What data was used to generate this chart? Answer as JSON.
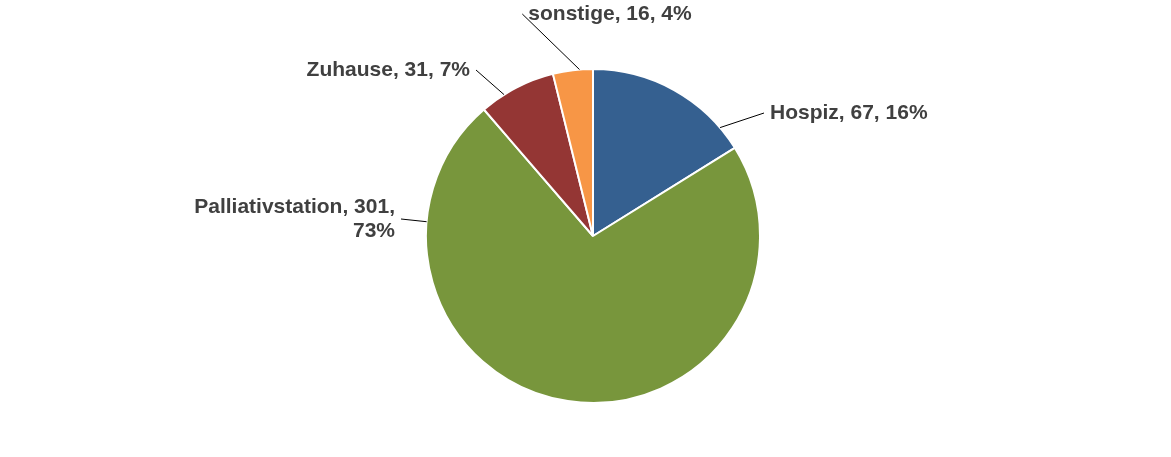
{
  "chart_data": {
    "type": "pie",
    "categories": [
      "Hospiz",
      "Palliativstation",
      "Zuhause",
      "sonstige"
    ],
    "values": [
      67,
      301,
      31,
      16
    ],
    "colors": [
      "#356090",
      "#78963c",
      "#943634",
      "#f79646"
    ],
    "value_labels": [
      "67, 16%",
      "301, 73%",
      "31, 7%",
      "16, 4%"
    ],
    "legend": false
  }
}
